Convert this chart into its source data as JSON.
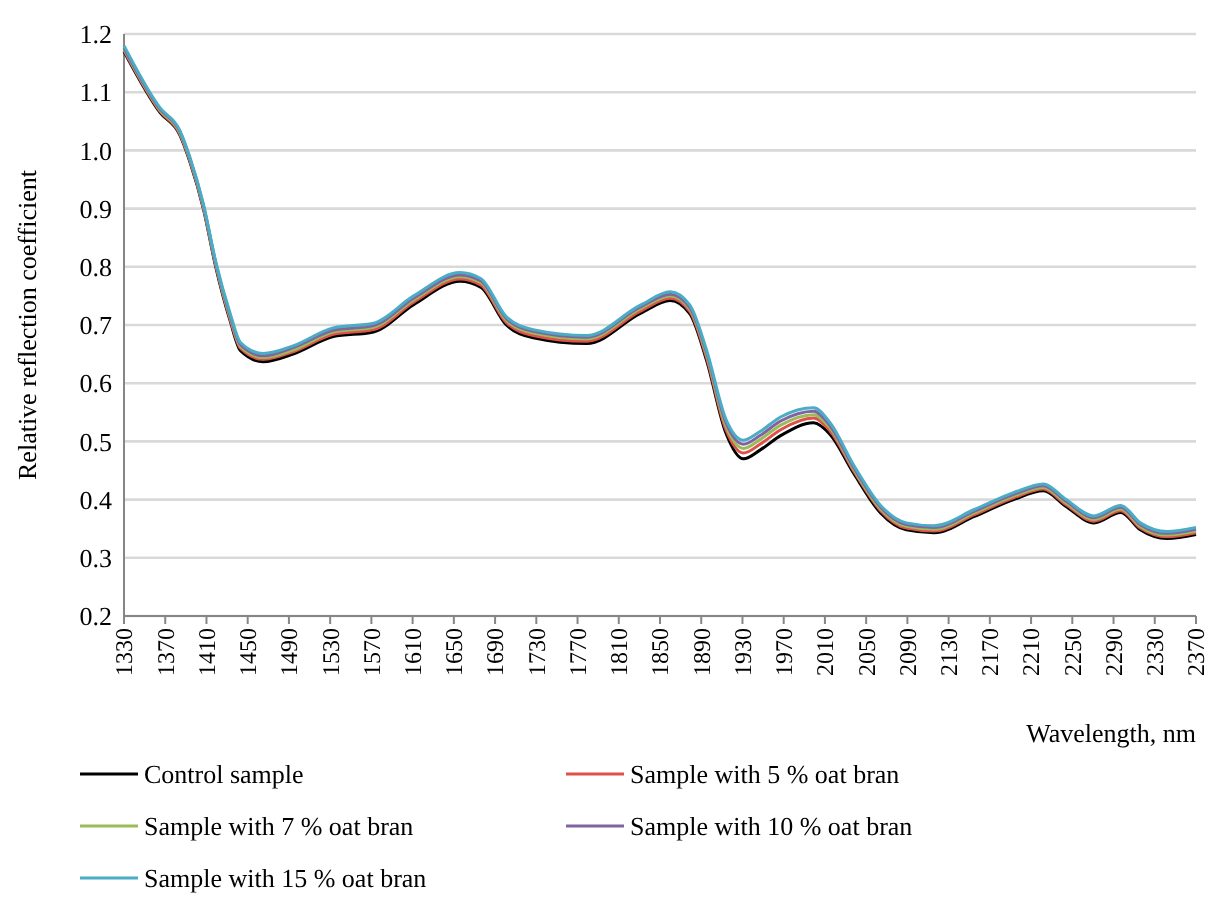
{
  "chart_data": {
    "type": "line",
    "xlabel": "Wavelength, nm",
    "ylabel": "Relative reflection coefficient",
    "x": [
      1330,
      1365,
      1384,
      1394,
      1407,
      1419,
      1433,
      1443,
      1465,
      1494,
      1533,
      1572,
      1611,
      1656,
      1676,
      1701,
      1727,
      1779,
      1831,
      1860,
      1879,
      1895,
      1914,
      1931,
      1947,
      1967,
      1999,
      2015,
      2038,
      2064,
      2089,
      2116,
      2155,
      2193,
      2222,
      2244,
      2271,
      2297,
      2316,
      2342,
      2370
    ],
    "series": [
      {
        "name": "Control sample",
        "color": "#000000",
        "values": [
          1.17,
          1.065,
          1.027,
          0.98,
          0.9,
          0.8,
          0.707,
          0.656,
          0.637,
          0.65,
          0.68,
          0.688,
          0.735,
          0.775,
          0.765,
          0.7,
          0.678,
          0.668,
          0.72,
          0.742,
          0.719,
          0.64,
          0.514,
          0.47,
          0.485,
          0.51,
          0.532,
          0.512,
          0.445,
          0.377,
          0.348,
          0.343,
          0.371,
          0.4,
          0.415,
          0.388,
          0.36,
          0.378,
          0.348,
          0.333,
          0.34
        ]
      },
      {
        "name": "Sample with 5 % oat bran",
        "color": "#e0504a",
        "values": [
          1.172,
          1.067,
          1.029,
          0.982,
          0.902,
          0.803,
          0.71,
          0.66,
          0.641,
          0.654,
          0.684,
          0.692,
          0.739,
          0.779,
          0.769,
          0.704,
          0.682,
          0.672,
          0.724,
          0.746,
          0.723,
          0.645,
          0.52,
          0.48,
          0.495,
          0.52,
          0.54,
          0.518,
          0.449,
          0.381,
          0.351,
          0.346,
          0.374,
          0.403,
          0.418,
          0.391,
          0.363,
          0.381,
          0.351,
          0.336,
          0.343
        ]
      },
      {
        "name": "Sample with 7 % oat bran",
        "color": "#9bbb59",
        "values": [
          1.174,
          1.069,
          1.031,
          0.984,
          0.904,
          0.805,
          0.713,
          0.663,
          0.644,
          0.657,
          0.688,
          0.696,
          0.743,
          0.783,
          0.773,
          0.708,
          0.686,
          0.676,
          0.728,
          0.75,
          0.727,
          0.65,
          0.526,
          0.488,
          0.503,
          0.528,
          0.546,
          0.523,
          0.452,
          0.384,
          0.354,
          0.349,
          0.377,
          0.406,
          0.421,
          0.394,
          0.366,
          0.384,
          0.354,
          0.339,
          0.346
        ]
      },
      {
        "name": "Sample with 10 % oat bran",
        "color": "#8064a2",
        "values": [
          1.176,
          1.071,
          1.033,
          0.986,
          0.906,
          0.807,
          0.716,
          0.666,
          0.647,
          0.661,
          0.691,
          0.699,
          0.746,
          0.786,
          0.776,
          0.711,
          0.689,
          0.679,
          0.731,
          0.753,
          0.73,
          0.654,
          0.532,
          0.495,
          0.51,
          0.535,
          0.552,
          0.527,
          0.455,
          0.387,
          0.357,
          0.352,
          0.38,
          0.409,
          0.424,
          0.397,
          0.369,
          0.387,
          0.357,
          0.342,
          0.349
        ]
      },
      {
        "name": "Sample with 15 % oat bran",
        "color": "#4bacc6",
        "values": [
          1.18,
          1.073,
          1.035,
          0.988,
          0.908,
          0.809,
          0.72,
          0.67,
          0.651,
          0.664,
          0.695,
          0.703,
          0.75,
          0.79,
          0.78,
          0.714,
          0.692,
          0.682,
          0.734,
          0.757,
          0.734,
          0.658,
          0.538,
          0.502,
          0.517,
          0.542,
          0.558,
          0.532,
          0.459,
          0.39,
          0.36,
          0.355,
          0.383,
          0.412,
          0.427,
          0.4,
          0.372,
          0.39,
          0.36,
          0.345,
          0.352
        ]
      }
    ],
    "xlim": [
      1330,
      2370
    ],
    "xticks": [
      1330,
      1370,
      1410,
      1450,
      1490,
      1530,
      1570,
      1610,
      1650,
      1690,
      1730,
      1770,
      1810,
      1850,
      1890,
      1930,
      1970,
      2010,
      2050,
      2090,
      2130,
      2170,
      2210,
      2250,
      2290,
      2330,
      2370
    ],
    "ylim": [
      0.2,
      1.2
    ],
    "yticks": [
      {
        "value": 0.2,
        "label": "0.2"
      },
      {
        "value": 0.3,
        "label": "0.3"
      },
      {
        "value": 0.4,
        "label": "0.4"
      },
      {
        "value": 0.5,
        "label": "0.5"
      },
      {
        "value": 0.6,
        "label": "0.6"
      },
      {
        "value": 0.7,
        "label": "0.7"
      },
      {
        "value": 0.8,
        "label": "0.8"
      },
      {
        "value": 0.9,
        "label": "0.9"
      },
      {
        "value": 1.0,
        "label": "1.0"
      },
      {
        "value": 1.1,
        "label": "1.1"
      },
      {
        "value": 1.2,
        "label": "1.2"
      }
    ],
    "grid": "y",
    "legend": "bottom",
    "marker": "none",
    "line_style": "solid"
  }
}
